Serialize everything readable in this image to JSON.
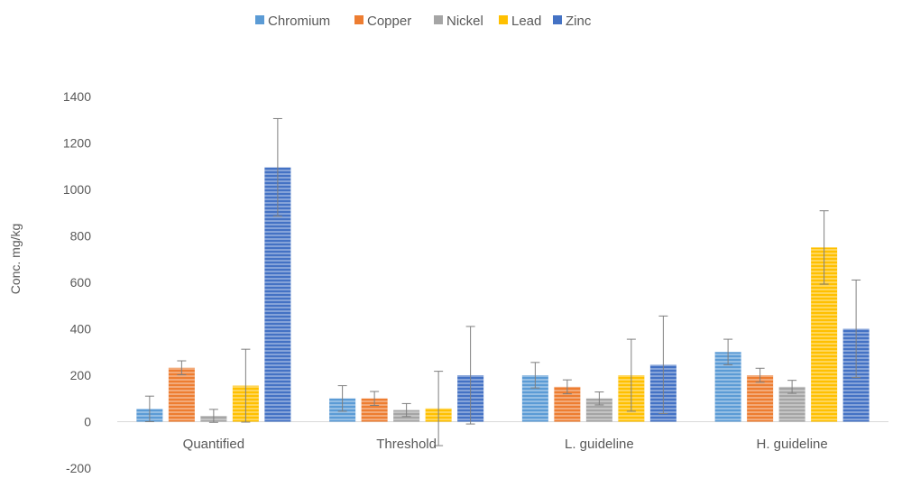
{
  "chart_data": {
    "type": "bar",
    "title": "",
    "xlabel": "",
    "ylabel": "Conc. mg/kg",
    "ylim": [
      -200,
      1400
    ],
    "yticks": [
      -200,
      0,
      200,
      400,
      600,
      800,
      1000,
      1200,
      1400
    ],
    "grid": false,
    "legend_position": "top",
    "categories": [
      "Quantified",
      "Threshold",
      "L. guideline",
      "H. guideline"
    ],
    "series": [
      {
        "name": "Chromium",
        "color": "#5B9BD5",
        "values": [
          55,
          100,
          200,
          300
        ],
        "errors": [
          55,
          55,
          55,
          55
        ]
      },
      {
        "name": "Copper",
        "color": "#ED7D31",
        "values": [
          232,
          100,
          150,
          200
        ],
        "errors": [
          30,
          30,
          30,
          30
        ]
      },
      {
        "name": "Nickel",
        "color": "#A5A5A5",
        "values": [
          25,
          50,
          100,
          150
        ],
        "errors": [
          28,
          28,
          28,
          28
        ]
      },
      {
        "name": "Lead",
        "color": "#FFC000",
        "values": [
          155,
          57,
          200,
          750
        ],
        "errors": [
          157,
          160,
          155,
          158
        ]
      },
      {
        "name": "Zinc",
        "color": "#4472C4",
        "values": [
          1095,
          200,
          245,
          400
        ],
        "errors": [
          210,
          210,
          210,
          210
        ]
      }
    ]
  }
}
